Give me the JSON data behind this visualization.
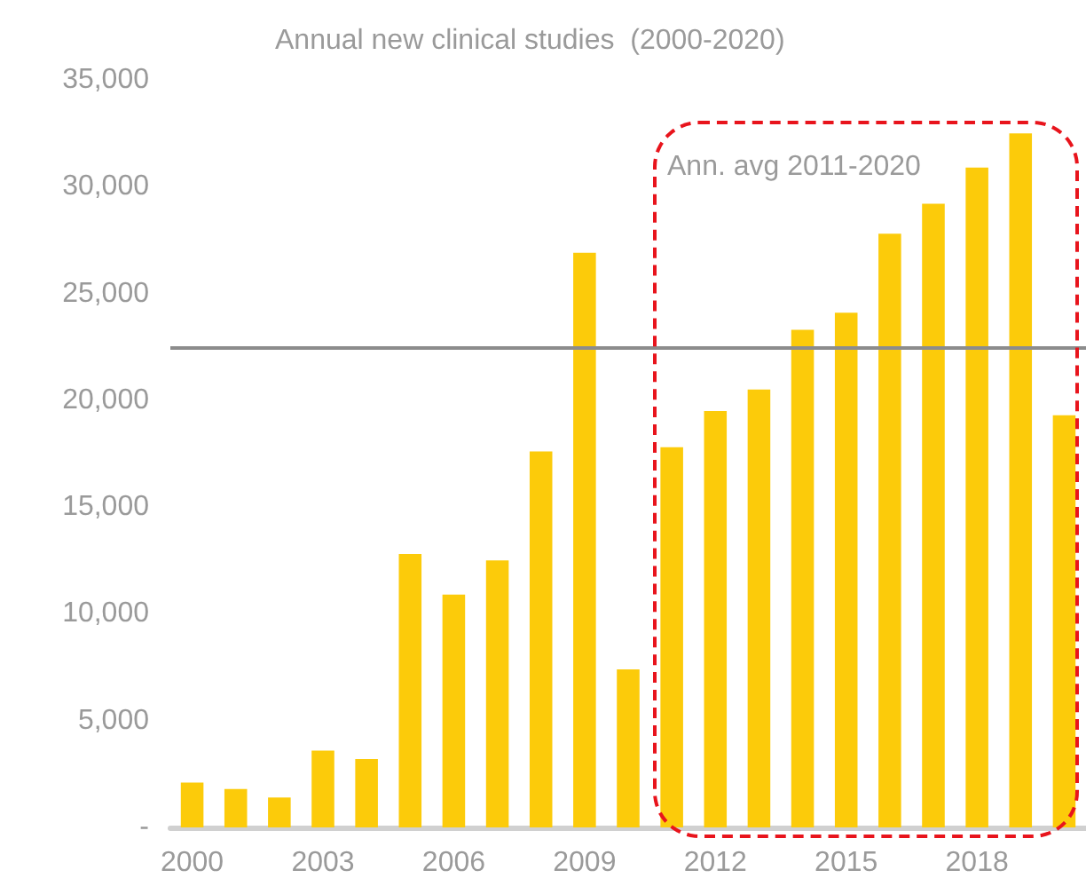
{
  "chart_data": {
    "type": "bar",
    "title": "Annual new clinical studies  (2000-2020)",
    "categories": [
      "2000",
      null,
      null,
      "2003",
      null,
      null,
      "2006",
      null,
      null,
      "2009",
      null,
      null,
      "2012",
      null,
      null,
      "2015",
      null,
      null,
      "2018",
      null,
      null
    ],
    "values": [
      2100,
      1800,
      1400,
      3600,
      3200,
      12800,
      10900,
      12500,
      17600,
      26900,
      7400,
      17800,
      19500,
      20500,
      23300,
      24100,
      27800,
      29200,
      30900,
      32500,
      19300
    ],
    "color": "#fccb0a",
    "ylim": [
      0,
      35000
    ],
    "yticks": [
      {
        "value": 0,
        "label": "-"
      },
      {
        "value": 5000,
        "label": "5,000"
      },
      {
        "value": 10000,
        "label": "10,000"
      },
      {
        "value": 15000,
        "label": "15,000"
      },
      {
        "value": 20000,
        "label": "20,000"
      },
      {
        "value": 25000,
        "label": "25,000"
      },
      {
        "value": 30000,
        "label": "30,000"
      },
      {
        "value": 35000,
        "label": "35,000"
      }
    ],
    "ref_lines": [
      {
        "axis": "y",
        "value": 22500,
        "label": "Ann. avg 2011-2020",
        "color": "#8c8c8c"
      }
    ],
    "grid": false
  }
}
